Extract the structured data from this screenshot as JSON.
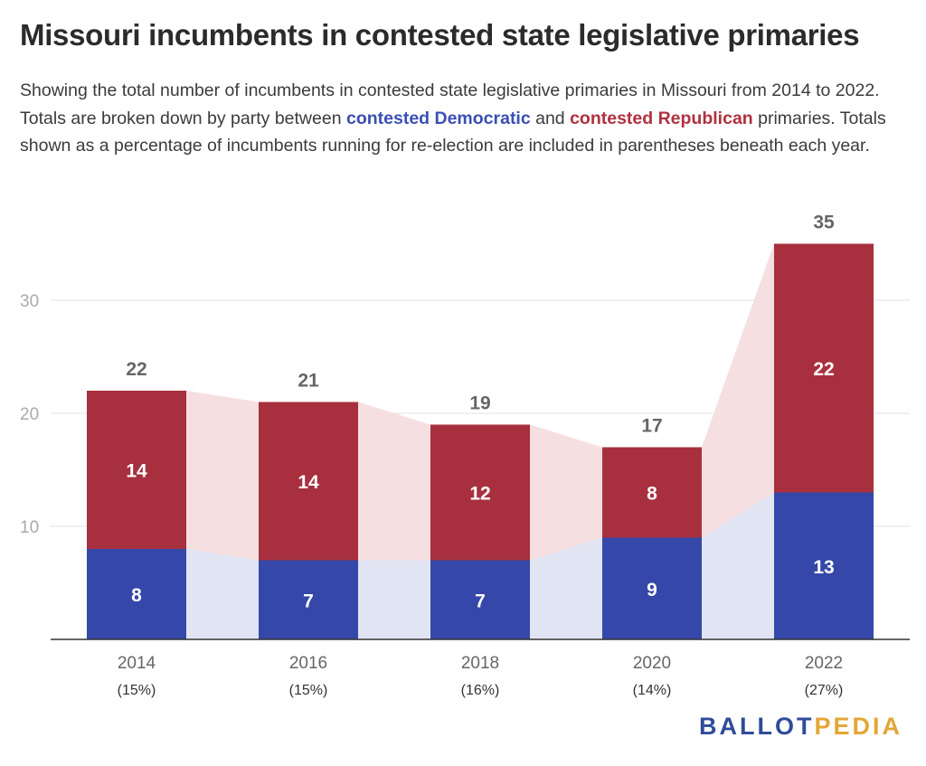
{
  "title": "Missouri incumbents in contested state legislative primaries",
  "subtitle": {
    "part1": "Showing the total number of incumbents in contested state legislative primaries in Missouri from 2014 to 2022. Totals are broken down by party between ",
    "dem_label": "contested Democratic",
    "part2": " and ",
    "rep_label": "contested Republican",
    "part3": " primaries. Totals shown as a percentage of incumbents running for re-election are included in parentheses beneath each year."
  },
  "logo": {
    "part1": "BALLOT",
    "part2": "PEDIA"
  },
  "colors": {
    "democratic": "#3548a9",
    "republican": "#a8303e",
    "dem_band": "#e1e4f3",
    "rep_band": "#f5dfe1",
    "grid": "#e2e2e2",
    "axis": "#333333",
    "tick_text": "#aaaaaa",
    "label_text": "#666666",
    "logo_primary": "#2f4c9a",
    "logo_secondary": "#e3a637"
  },
  "chart_data": {
    "type": "bar",
    "stacked": true,
    "categories": [
      "2014",
      "2016",
      "2018",
      "2020",
      "2022"
    ],
    "category_sublabels": [
      "(15%)",
      "(15%)",
      "(16%)",
      "(14%)",
      "(27%)"
    ],
    "series": [
      {
        "name": "contested Democratic",
        "values": [
          8,
          7,
          7,
          9,
          13
        ]
      },
      {
        "name": "contested Republican",
        "values": [
          14,
          14,
          12,
          8,
          22
        ]
      }
    ],
    "totals": [
      22,
      21,
      19,
      17,
      35
    ],
    "yticks": [
      10,
      20,
      30
    ],
    "ylim": [
      0,
      35
    ],
    "grid": true
  }
}
